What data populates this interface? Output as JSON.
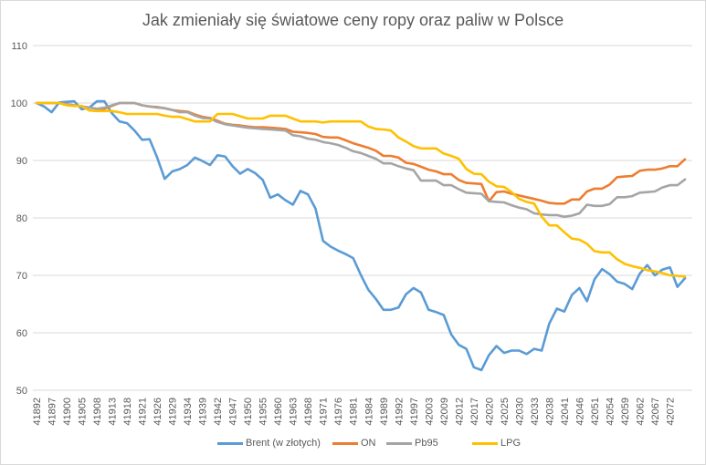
{
  "chart_data": {
    "type": "line",
    "title": "Jak zmieniały się światowe ceny ropy oraz paliw w Polsce",
    "xlabel": "",
    "ylabel": "",
    "ylim": [
      50,
      110
    ],
    "yticks": [
      50,
      60,
      70,
      80,
      90,
      100,
      110
    ],
    "grid": true,
    "legend": "bottom",
    "categories": [
      "41892",
      "",
      "41897",
      "",
      "41900",
      "",
      "41905",
      "",
      "41908",
      "",
      "41913",
      "",
      "41918",
      "",
      "41921",
      "",
      "41926",
      "",
      "41929",
      "",
      "41934",
      "",
      "41939",
      "",
      "41942",
      "",
      "41947",
      "",
      "41950",
      "",
      "41955",
      "",
      "41960",
      "",
      "41963",
      "",
      "41968",
      "",
      "41971",
      "",
      "41976",
      "",
      "41981",
      "",
      "41984",
      "",
      "41989",
      "",
      "41992",
      "",
      "41997",
      "",
      "42003",
      "",
      "42009",
      "",
      "42012",
      "",
      "42017",
      "",
      "42020",
      "",
      "42025",
      "",
      "42030",
      "",
      "42033",
      "",
      "42038",
      "",
      "42041",
      "",
      "42046",
      "",
      "42051",
      "",
      "42054",
      "",
      "42059",
      "",
      "42062",
      "",
      "42067",
      "",
      "42072",
      "",
      ""
    ],
    "series": [
      {
        "name": "Brent (w złotych)",
        "color": "#5B9BD5",
        "values": [
          100,
          99.4,
          98.4,
          100.1,
          100.2,
          100.3,
          98.9,
          99.2,
          100.3,
          100.3,
          98.2,
          96.8,
          96.5,
          95.2,
          93.6,
          93.7,
          90.5,
          86.8,
          88.1,
          88.5,
          89.2,
          90.5,
          89.9,
          89.2,
          90.9,
          90.7,
          89,
          87.7,
          88.5,
          87.8,
          86.6,
          83.5,
          84.1,
          83.1,
          82.3,
          84.7,
          84.1,
          81.6,
          76,
          75,
          74.3,
          73.7,
          73,
          70.1,
          67.5,
          65.9,
          64,
          64,
          64.4,
          66.7,
          67.8,
          67,
          64,
          63.6,
          63.1,
          59.7,
          57.9,
          57.2,
          54,
          53.5,
          56.1,
          57.7,
          56.5,
          56.9,
          56.9,
          56.3,
          57.2,
          56.9,
          61.6,
          64.2,
          63.7,
          66.6,
          67.8,
          65.5,
          69.3,
          71.1,
          70.2,
          68.9,
          68.5,
          67.6,
          70.3,
          71.8,
          70,
          71,
          71.4,
          68,
          69.5
        ]
      },
      {
        "name": "ON",
        "color": "#ED7D31",
        "values": [
          100,
          100,
          100,
          100,
          99.8,
          99.6,
          99.4,
          99.2,
          99,
          99,
          99.5,
          100,
          100,
          100,
          99.6,
          99.4,
          99.3,
          99.1,
          98.8,
          98.6,
          98.5,
          98,
          97.6,
          97.4,
          96.9,
          96.4,
          96.2,
          96.1,
          95.9,
          95.8,
          95.8,
          95.7,
          95.6,
          95.5,
          95,
          94.9,
          94.8,
          94.6,
          94.1,
          94,
          94,
          93.5,
          93,
          92.6,
          92.2,
          91.7,
          90.8,
          90.8,
          90.5,
          89.6,
          89.4,
          88.9,
          88.4,
          88.1,
          87.6,
          87.6,
          86.6,
          86.1,
          86,
          85.9,
          82.9,
          84.5,
          84.6,
          84.2,
          83.9,
          83.6,
          83.3,
          83,
          82.6,
          82.5,
          82.5,
          83.2,
          83.2,
          84.6,
          85.1,
          85.1,
          85.8,
          87.1,
          87.2,
          87.3,
          88.2,
          88.4,
          88.4,
          88.6,
          89,
          89,
          90.2
        ]
      },
      {
        "name": "Pb95",
        "color": "#A5A5A5",
        "values": [
          100,
          100,
          100,
          100,
          99.8,
          99.6,
          99.4,
          99.2,
          99,
          99.2,
          99.6,
          100,
          100,
          100,
          99.6,
          99.4,
          99.2,
          99.1,
          98.8,
          98.4,
          98.4,
          97.8,
          97.4,
          97.3,
          96.7,
          96.3,
          96.1,
          95.9,
          95.7,
          95.6,
          95.5,
          95.4,
          95.3,
          95.2,
          94.4,
          94.2,
          93.8,
          93.6,
          93.2,
          93,
          92.7,
          92.2,
          91.6,
          91.3,
          90.8,
          90.3,
          89.5,
          89.5,
          89,
          88.6,
          88.3,
          86.5,
          86.5,
          86.5,
          85.7,
          85.7,
          85,
          84.4,
          84.3,
          84.2,
          82.9,
          82.8,
          82.7,
          82.2,
          81.8,
          81.5,
          80.8,
          80.6,
          80.5,
          80.5,
          80.2,
          80.4,
          80.8,
          82.3,
          82.1,
          82.1,
          82.4,
          83.6,
          83.6,
          83.8,
          84.4,
          84.5,
          84.6,
          85.3,
          85.7,
          85.7,
          86.7
        ]
      },
      {
        "name": "LPG",
        "color": "#FFC000",
        "values": [
          100,
          100,
          100,
          100,
          99.6,
          99.5,
          99.5,
          98.7,
          98.6,
          98.6,
          98.6,
          98.4,
          98.1,
          98.1,
          98.1,
          98.1,
          98.1,
          97.8,
          97.6,
          97.6,
          97.2,
          96.8,
          96.8,
          96.8,
          98.1,
          98.1,
          98.1,
          97.7,
          97.3,
          97.3,
          97.3,
          97.8,
          97.8,
          97.8,
          97.3,
          96.8,
          96.8,
          96.8,
          96.6,
          96.8,
          96.8,
          96.8,
          96.8,
          96.8,
          95.9,
          95.5,
          95.4,
          95.2,
          94,
          93.3,
          92.5,
          92.1,
          92.1,
          92.1,
          91.2,
          90.8,
          90.3,
          88.5,
          87.7,
          87.6,
          86.3,
          85.5,
          85.4,
          84.5,
          83.3,
          82.8,
          82.5,
          80.2,
          78.7,
          78.7,
          77.5,
          76.4,
          76.2,
          75.5,
          74.2,
          74,
          74,
          72.8,
          72,
          71.6,
          71.3,
          70.9,
          70.7,
          70.4,
          70,
          69.9,
          69.8
        ]
      }
    ]
  }
}
